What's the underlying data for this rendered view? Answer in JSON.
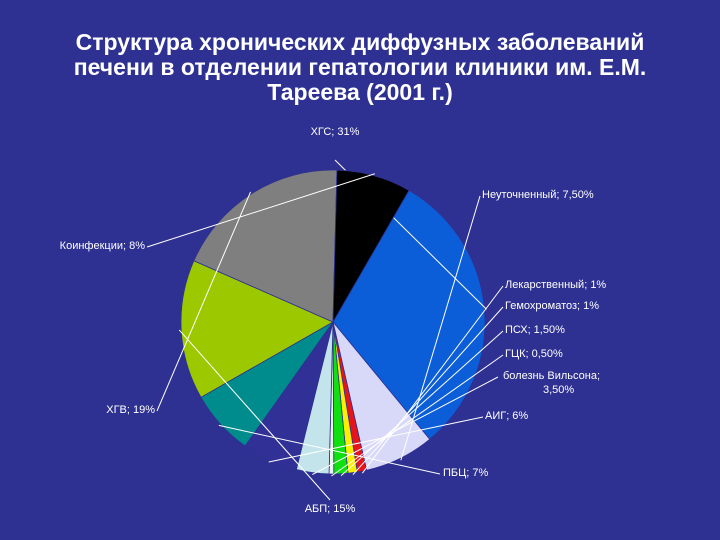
{
  "slide": {
    "title_lines": [
      "Структура хронических диффузных заболеваний",
      "печени в отделении гепатологии клиники им. Е.М.",
      "Тареева (2001 г.)"
    ]
  },
  "chart_data": {
    "type": "pie",
    "title": "Структура хронических диффузных заболеваний печени в отделении гепатологии клиники им. Е.М. Тареева (2001 г.)",
    "slices": [
      {
        "label": "ХГС; 31%",
        "name": "ХГС",
        "value": 31,
        "color": "#0b5ed8"
      },
      {
        "label": "Неуточненный; 7,50%",
        "name": "Неуточненный",
        "value": 7.5,
        "color": "#d8d8f8"
      },
      {
        "label": "Лекарственный; 1%",
        "name": "Лекарственный",
        "value": 1,
        "color": "#e8141c"
      },
      {
        "label": "Гемохроматоз; 1%",
        "name": "Гемохроматоз",
        "value": 1,
        "color": "#f8f000"
      },
      {
        "label": "ПСХ; 1,50%",
        "name": "ПСХ",
        "value": 1.5,
        "color": "#10e010"
      },
      {
        "label": "ГЦК; 0,50%",
        "name": "ГЦК",
        "value": 0.5,
        "color": "#f0f0f0"
      },
      {
        "label_lines": [
          "болезнь Вильсона;",
          "3,50%"
        ],
        "name": "болезнь Вильсона",
        "value": 3.5,
        "color": "#c4e4ec"
      },
      {
        "label": "АИГ; 6%",
        "name": "АИГ",
        "value": 6,
        "color": "#303096"
      },
      {
        "label": "ПБЦ; 7%",
        "name": "ПБЦ",
        "value": 7,
        "color": "#008c8c"
      },
      {
        "label": "АБП; 15%",
        "name": "АБП",
        "value": 15,
        "color": "#9cc800"
      },
      {
        "label": "ХГВ; 19%",
        "name": "ХГВ",
        "value": 19,
        "color": "#7f7f7f"
      },
      {
        "label": "Коинфекции; 8%",
        "name": "Коинфекции",
        "value": 8,
        "color": "#000000"
      }
    ],
    "start_angle_deg": -60,
    "direction": "clockwise",
    "legend": "none"
  }
}
